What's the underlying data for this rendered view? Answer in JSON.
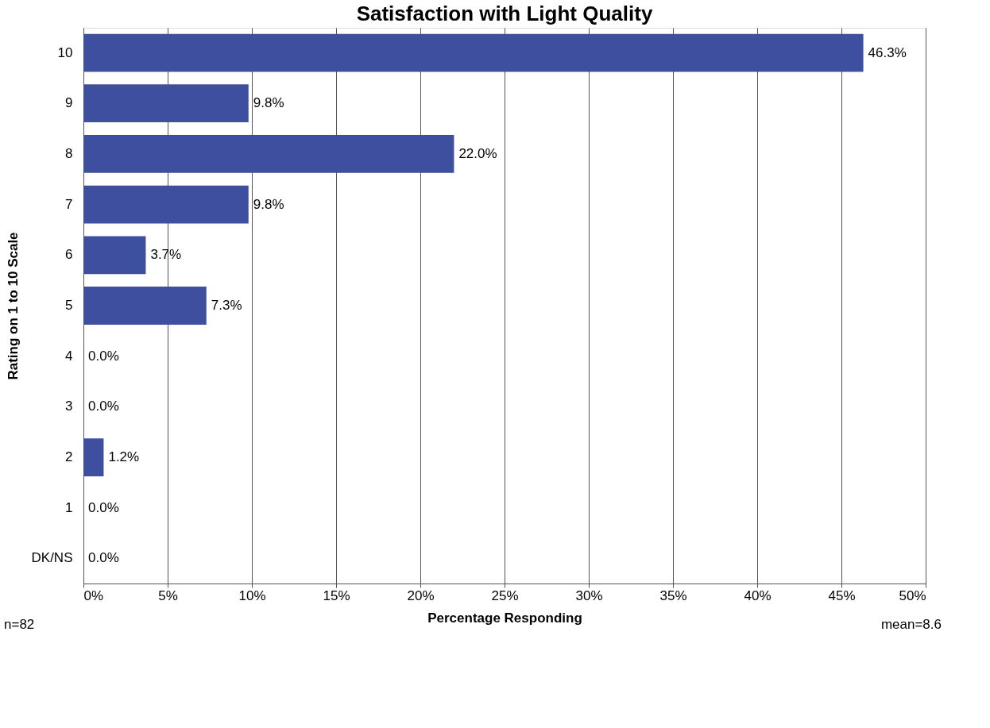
{
  "chart_data": {
    "type": "bar",
    "orientation": "horizontal",
    "title": "Satisfaction with Light Quality",
    "xlabel": "Percentage Responding",
    "ylabel": "Rating on 1 to 10 Scale",
    "categories": [
      "10",
      "9",
      "8",
      "7",
      "6",
      "5",
      "4",
      "3",
      "2",
      "1",
      "DK/NS"
    ],
    "values": [
      46.3,
      9.8,
      22.0,
      9.8,
      3.7,
      7.3,
      0.0,
      0.0,
      1.2,
      0.0,
      0.0
    ],
    "value_labels": [
      "46.3%",
      "9.8%",
      "22.0%",
      "9.8%",
      "3.7%",
      "7.3%",
      "0.0%",
      "0.0%",
      "1.2%",
      "0.0%",
      "0.0%"
    ],
    "color": "#3f4f9f",
    "xlim": [
      0,
      50
    ],
    "xticks": [
      {
        "value": 0,
        "label": "0%"
      },
      {
        "value": 5,
        "label": "5%"
      },
      {
        "value": 10,
        "label": "10%"
      },
      {
        "value": 15,
        "label": "15%"
      },
      {
        "value": 20,
        "label": "20%"
      },
      {
        "value": 25,
        "label": "25%"
      },
      {
        "value": 30,
        "label": "30%"
      },
      {
        "value": 35,
        "label": "35%"
      },
      {
        "value": 40,
        "label": "40%"
      },
      {
        "value": 45,
        "label": "45%"
      },
      {
        "value": 50,
        "label": "50%"
      }
    ],
    "grid": "x",
    "annotations": [
      "n=82",
      "mean=8.6"
    ]
  }
}
